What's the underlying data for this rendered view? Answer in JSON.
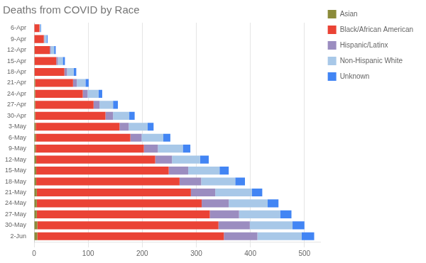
{
  "chart_data": {
    "type": "bar",
    "title": "Deaths from COVID by Race",
    "orientation": "horizontal",
    "stacked": true,
    "categories": [
      "6-Apr",
      "9-Apr",
      "12-Apr",
      "15-Apr",
      "18-Apr",
      "21-Apr",
      "24-Apr",
      "27-Apr",
      "30-Apr",
      "3-May",
      "6-May",
      "9-May",
      "12-May",
      "15-May",
      "18-May",
      "21-May",
      "24-May",
      "27-May",
      "30-May",
      "2-Jun"
    ],
    "series": [
      {
        "name": "Asian",
        "color": "#8B8B3A",
        "values": [
          0,
          0,
          1,
          1,
          1,
          2,
          2,
          2,
          2,
          3,
          3,
          3,
          4,
          4,
          4,
          5,
          5,
          5,
          6,
          6
        ]
      },
      {
        "name": "Black/African American",
        "color": "#EA4335",
        "values": [
          10,
          18,
          28,
          40,
          55,
          70,
          88,
          108,
          130,
          155,
          175,
          200,
          220,
          245,
          265,
          285,
          305,
          320,
          335,
          345
        ]
      },
      {
        "name": "Hispanic/Latinx",
        "color": "#9B8DC0",
        "values": [
          0,
          1,
          2,
          3,
          5,
          7,
          9,
          11,
          14,
          17,
          21,
          26,
          31,
          36,
          40,
          45,
          50,
          54,
          58,
          62
        ]
      },
      {
        "name": "Non-Hispanic White",
        "color": "#A8C8E8",
        "values": [
          2,
          4,
          6,
          9,
          12,
          16,
          20,
          25,
          30,
          35,
          40,
          46,
          52,
          58,
          63,
          68,
          72,
          76,
          79,
          82
        ]
      },
      {
        "name": "Unknown",
        "color": "#4285F4",
        "values": [
          1,
          2,
          3,
          4,
          5,
          6,
          7,
          9,
          10,
          11,
          13,
          14,
          16,
          17,
          18,
          19,
          20,
          21,
          22,
          23
        ]
      }
    ],
    "xlim": [
      0,
      530
    ],
    "xticks": [
      0,
      100,
      200,
      300,
      400,
      500
    ],
    "grid": true,
    "legend": "right"
  }
}
